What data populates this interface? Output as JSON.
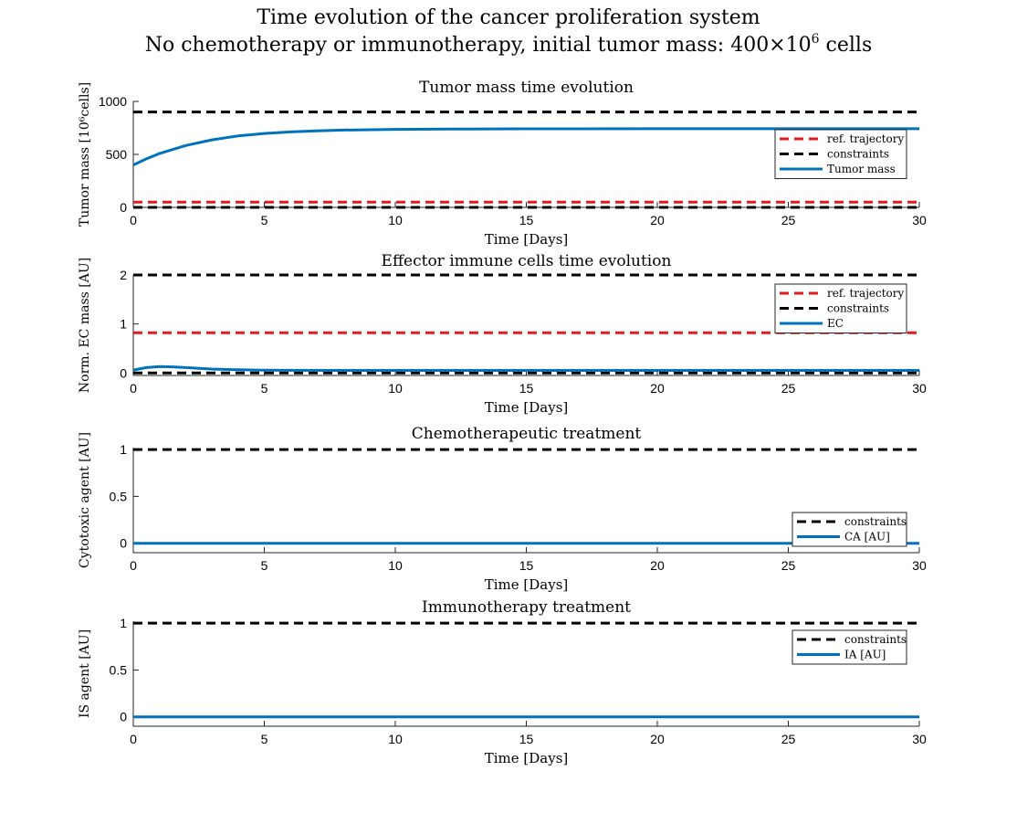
{
  "figure": {
    "title_line1": "Time evolution of the cancer proliferation system",
    "title_line2_prefix": "No chemotherapy or immunotherapy, initial tumor mass: 400×10",
    "title_line2_sup": "6",
    "title_line2_suffix": " cells"
  },
  "colors": {
    "reference": "#e41a1c",
    "constraints": "#000000",
    "state": "#0072bd"
  },
  "chart_data": [
    {
      "type": "line",
      "title": "Tumor mass time evolution",
      "xlabel": "Time [Days]",
      "ylabel": "Tumor mass [10⁶cells]",
      "xlim": [
        0,
        30
      ],
      "ylim": [
        0,
        1000
      ],
      "xticks": [
        0,
        5,
        10,
        15,
        20,
        25,
        30
      ],
      "yticks": [
        0,
        500,
        1000
      ],
      "ytick_labels": [
        "0",
        "500",
        "1000"
      ],
      "grid": false,
      "legend": "right",
      "series": [
        {
          "name": "ref. trajectory",
          "style": "dashed",
          "color": "#e41a1c",
          "x": [
            0,
            30
          ],
          "y": [
            50,
            50
          ]
        },
        {
          "name": "constraints",
          "style": "dashed",
          "color": "#000000",
          "x": [
            0,
            30
          ],
          "y": [
            900,
            900
          ]
        },
        {
          "name": "constraints",
          "style": "dashed",
          "color": "#000000",
          "x": [
            0,
            30
          ],
          "y": [
            0,
            0
          ],
          "legend": false
        },
        {
          "name": "Tumor mass",
          "style": "solid",
          "color": "#0072bd",
          "x": [
            0,
            0.5,
            1,
            2,
            3,
            4,
            5,
            6,
            7,
            8,
            10,
            12,
            15,
            20,
            25,
            30
          ],
          "y": [
            400,
            458,
            508,
            584,
            637,
            674,
            697,
            712,
            722,
            729,
            736,
            739,
            741,
            742,
            742,
            742
          ]
        }
      ]
    },
    {
      "type": "line",
      "title": "Effector immune cells time evolution",
      "xlabel": "Time [Days]",
      "ylabel": "Norm. EC mass [AU]",
      "xlim": [
        0,
        30
      ],
      "ylim": [
        -0.05,
        2
      ],
      "xticks": [
        0,
        5,
        10,
        15,
        20,
        25,
        30
      ],
      "yticks": [
        0,
        1,
        2
      ],
      "ytick_labels": [
        "0",
        "1",
        "2"
      ],
      "grid": false,
      "legend": "top-right",
      "series": [
        {
          "name": "ref. trajectory",
          "style": "dashed",
          "color": "#e41a1c",
          "x": [
            0,
            30
          ],
          "y": [
            0.82,
            0.82
          ]
        },
        {
          "name": "constraints",
          "style": "dashed",
          "color": "#000000",
          "x": [
            0,
            30
          ],
          "y": [
            2,
            2
          ]
        },
        {
          "name": "constraints",
          "style": "dashed",
          "color": "#000000",
          "x": [
            0,
            30
          ],
          "y": [
            0,
            0
          ],
          "legend": false
        },
        {
          "name": "EC",
          "style": "solid",
          "color": "#0072bd",
          "x": [
            0,
            0.5,
            1,
            1.5,
            2,
            3,
            4,
            5,
            6,
            8,
            10,
            15,
            20,
            25,
            30
          ],
          "y": [
            0.06,
            0.11,
            0.13,
            0.125,
            0.11,
            0.08,
            0.065,
            0.058,
            0.055,
            0.053,
            0.052,
            0.052,
            0.052,
            0.052,
            0.052
          ]
        }
      ]
    },
    {
      "type": "line",
      "title": "Chemotherapeutic treatment",
      "xlabel": "Time [Days]",
      "ylabel": "Cytotoxic agent [AU]",
      "xlim": [
        0,
        30
      ],
      "ylim": [
        -0.1,
        1.02
      ],
      "xticks": [
        0,
        5,
        10,
        15,
        20,
        25,
        30
      ],
      "yticks": [
        0,
        0.5,
        1
      ],
      "ytick_labels": [
        "0",
        "0.5",
        "1"
      ],
      "grid": false,
      "legend": "bottom-right",
      "series": [
        {
          "name": "constraints",
          "style": "dashed",
          "color": "#000000",
          "x": [
            0,
            30
          ],
          "y": [
            1,
            1
          ]
        },
        {
          "name": "CA [AU]",
          "style": "solid",
          "color": "#0072bd",
          "x": [
            0,
            30
          ],
          "y": [
            0,
            0
          ]
        }
      ]
    },
    {
      "type": "line",
      "title": "Immunotherapy treatment",
      "xlabel": "Time [Days]",
      "ylabel": "IS agent [AU]",
      "xlim": [
        0,
        30
      ],
      "ylim": [
        -0.1,
        1.02
      ],
      "xticks": [
        0,
        5,
        10,
        15,
        20,
        25,
        30
      ],
      "yticks": [
        0,
        0.5,
        1
      ],
      "ytick_labels": [
        "0",
        "0.5",
        "1"
      ],
      "grid": false,
      "legend": "top-right",
      "series": [
        {
          "name": "constraints",
          "style": "dashed",
          "color": "#000000",
          "x": [
            0,
            30
          ],
          "y": [
            1,
            1
          ]
        },
        {
          "name": "IA [AU]",
          "style": "solid",
          "color": "#0072bd",
          "x": [
            0,
            30
          ],
          "y": [
            0,
            0
          ]
        }
      ]
    }
  ]
}
